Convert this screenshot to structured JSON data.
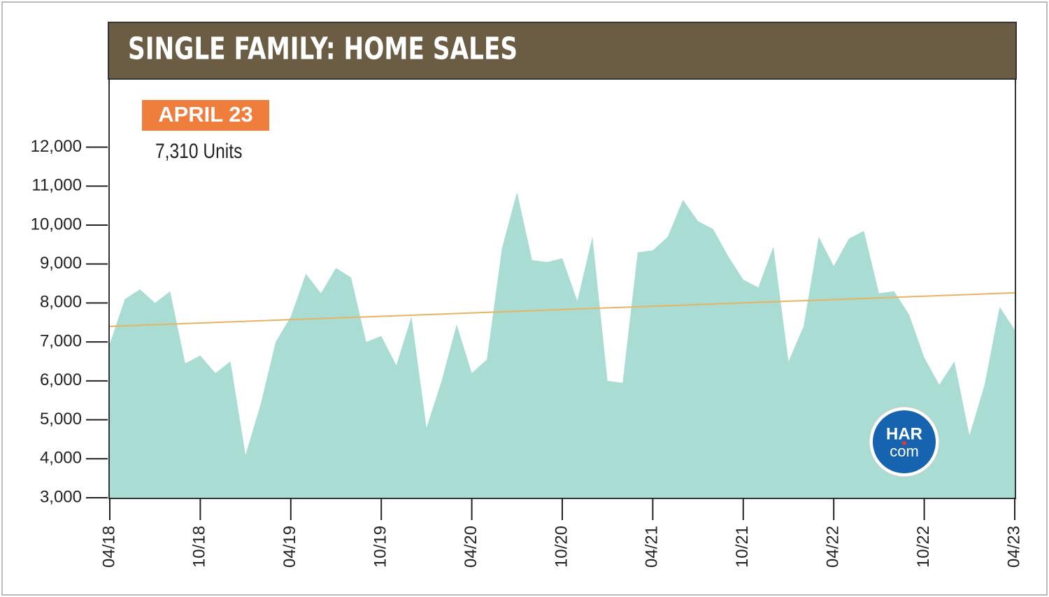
{
  "chart_data": {
    "type": "area",
    "title": "SINGLE FAMILY: HOME SALES",
    "annotation": {
      "label": "APRIL 23",
      "text": "7,310 Units"
    },
    "logo": {
      "top": "HAR",
      "bottom": "com"
    },
    "categories": [
      "04/18",
      null,
      null,
      null,
      null,
      null,
      "10/18",
      null,
      null,
      null,
      null,
      null,
      "04/19",
      null,
      null,
      null,
      null,
      null,
      "10/19",
      null,
      null,
      null,
      null,
      null,
      "04/20",
      null,
      null,
      null,
      null,
      null,
      "10/20",
      null,
      null,
      null,
      null,
      null,
      "04/21",
      null,
      null,
      null,
      null,
      null,
      "10/21",
      null,
      null,
      null,
      null,
      null,
      "04/22",
      null,
      null,
      null,
      null,
      null,
      "10/22",
      null,
      null,
      null,
      null,
      null,
      "04/23"
    ],
    "values": [
      6950,
      8100,
      8350,
      8000,
      8300,
      6450,
      6650,
      6200,
      6500,
      4100,
      5400,
      7000,
      7650,
      8750,
      8250,
      8900,
      8650,
      7000,
      7150,
      6400,
      7650,
      4800,
      6000,
      7450,
      6200,
      6550,
      9400,
      10850,
      9100,
      9050,
      9150,
      8050,
      9700,
      6000,
      5950,
      9300,
      9350,
      9700,
      10650,
      10100,
      9900,
      9200,
      8600,
      8400,
      9450,
      6500,
      7400,
      9700,
      8950,
      9650,
      9850,
      8250,
      8300,
      7700,
      6600,
      5900,
      6500,
      4600,
      5900,
      7900,
      7310
    ],
    "color": "#a9dcd3",
    "trend": {
      "values": [
        7400,
        8260
      ],
      "color": "#e6b463"
    },
    "ylim": [
      3000,
      13750
    ],
    "yticks": [
      {
        "value": 3000,
        "label": "3,000"
      },
      {
        "value": 4000,
        "label": "4,000"
      },
      {
        "value": 5000,
        "label": "5,000"
      },
      {
        "value": 6000,
        "label": "6,000"
      },
      {
        "value": 7000,
        "label": "7,000"
      },
      {
        "value": 8000,
        "label": "8,000"
      },
      {
        "value": 9000,
        "label": "9,000"
      },
      {
        "value": 10000,
        "label": "10,000"
      },
      {
        "value": 11000,
        "label": "11,000"
      },
      {
        "value": 12000,
        "label": "12,000"
      }
    ]
  }
}
